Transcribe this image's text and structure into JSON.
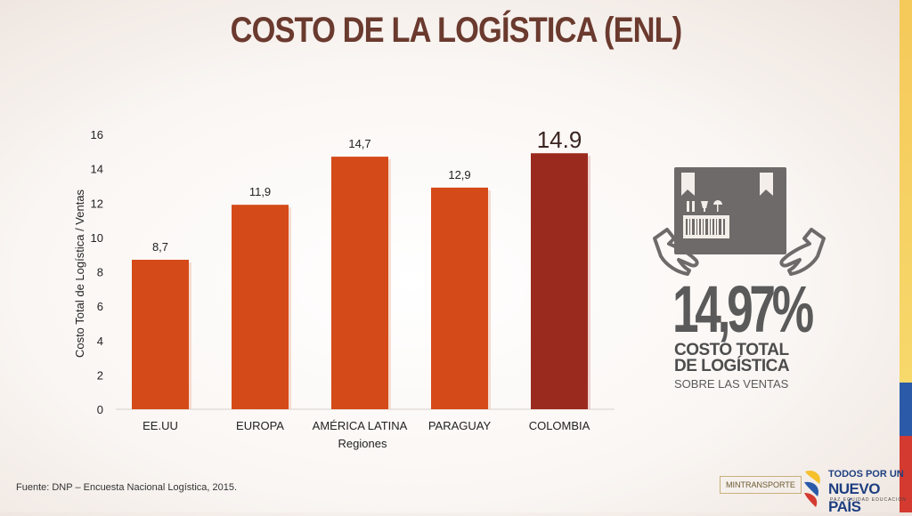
{
  "title": "COSTO DE LA LOGÍSTICA (ENL)",
  "source": "Fuente: DNP – Encuesta Nacional Logística, 2015.",
  "infographic": {
    "percent": "14,97%",
    "line1": "COSTO TOTAL",
    "line2": "DE LOGÍSTICA",
    "line3": "SOBRE LAS VENTAS"
  },
  "logos": {
    "ministry": "MINTRANSPORTE",
    "slogan_top": "TODOS POR UN",
    "slogan_main": "NUEVO PAÍS",
    "slogan_sub": "PAZ EQUIDAD EDUCACIÓN"
  },
  "colors": {
    "bar": "#d44a18",
    "highlight": "#9b2a1e",
    "title": "#6b3a2e",
    "infographic": "#6e6a69"
  },
  "chart_data": {
    "type": "bar",
    "categories": [
      "EE.UU",
      "EUROPA",
      "AMÉRICA LATINA",
      "PARAGUAY",
      "COLOMBIA"
    ],
    "values": [
      8.7,
      11.9,
      14.7,
      12.9,
      14.9
    ],
    "value_labels": [
      "8,7",
      "11,9",
      "14,7",
      "12,9",
      "14.9"
    ],
    "highlight_index": 4,
    "xlabel": "Regiones",
    "ylabel": "Costo Total de Logística / Ventas",
    "ylim": [
      0,
      16
    ],
    "yticks": [
      0,
      2,
      4,
      6,
      8,
      10,
      12,
      14,
      16
    ],
    "grid": false
  }
}
